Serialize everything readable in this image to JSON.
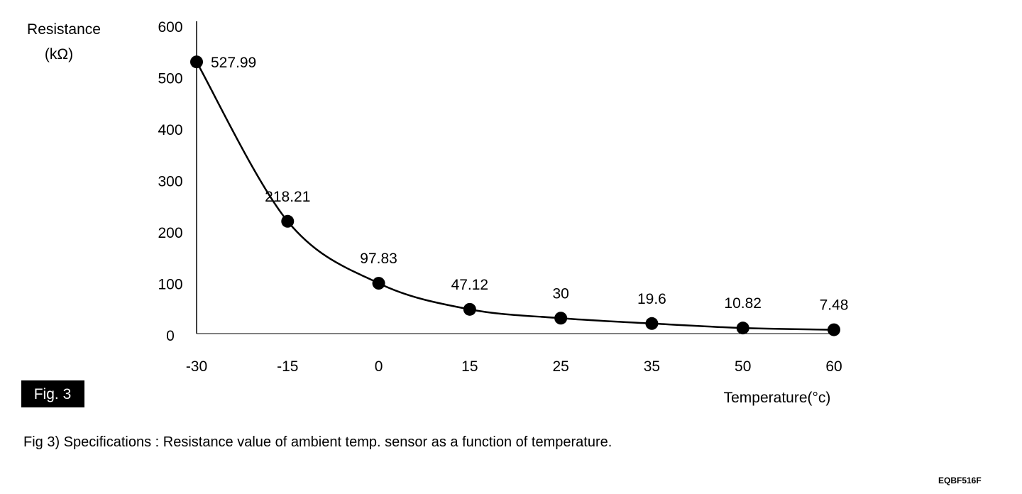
{
  "chart_data": {
    "type": "line",
    "title": "",
    "ylabel": "Resistance",
    "ylabel_unit": "(kΩ)",
    "xlabel": "Temperature(°c)",
    "categories": [
      "-30",
      "-15",
      "0",
      "15",
      "25",
      "35",
      "50",
      "60"
    ],
    "values": [
      527.99,
      218.21,
      97.83,
      47.12,
      30,
      19.6,
      10.82,
      7.48
    ],
    "data_labels": [
      "527.99",
      "218.21",
      "97.83",
      "47.12",
      "30",
      "19.6",
      "10.82",
      "7.48"
    ],
    "yticks": [
      "0",
      "100",
      "200",
      "300",
      "400",
      "500",
      "600"
    ],
    "ylim": [
      0,
      600
    ],
    "grid": false,
    "line_color": "#000000",
    "marker_color": "#000000"
  },
  "figure_badge": "Fig. 3",
  "caption": "Fig 3) Specifications : Resistance value of ambient temp. sensor as a function of temperature.",
  "figure_code": "EQBF516F"
}
